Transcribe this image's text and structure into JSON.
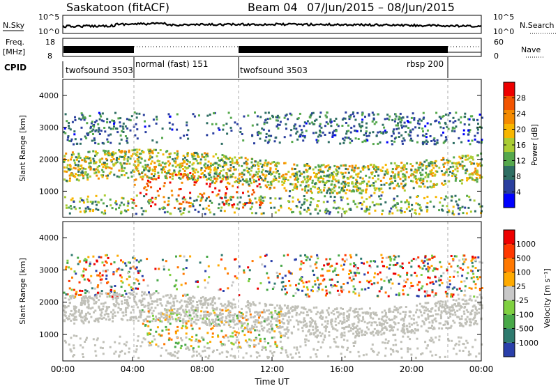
{
  "header": {
    "station": "Saskatoon (fitACF)",
    "beam": "Beam 04",
    "date_range": "07/Jun/2015 – 08/Jun/2015"
  },
  "side_labels": {
    "nsky": "N.Sky",
    "nsearch": "N.Search",
    "freq_line1": "Freq.",
    "freq_line2": "[MHz]",
    "nave": "Nave",
    "cpid": "CPID"
  },
  "noise_axis": {
    "left_ticks": [
      "10^5",
      "10^0"
    ],
    "right_ticks": [
      "10^5",
      "10^0"
    ]
  },
  "freq_axis": {
    "left_ticks": [
      "18",
      "8"
    ],
    "right_ticks": [
      "60",
      "0"
    ]
  },
  "cpid_segments": [
    {
      "label": "twofsound 3503",
      "start_h": 0.0,
      "end_h": 4.0
    },
    {
      "label": "normal (fast) 151",
      "start_h": 4.0,
      "end_h": 10.0
    },
    {
      "label": "twofsound 3503",
      "start_h": 10.0,
      "end_h": 22.0
    },
    {
      "label": "rbsp 200",
      "start_h": 22.0,
      "end_h": 24.0
    }
  ],
  "colors": {
    "power_scale": [
      "#0000ff",
      "#2a3f9e",
      "#2e6e63",
      "#55a84c",
      "#aacc33",
      "#f7b600",
      "#f48a00",
      "#f25400",
      "#ee0000"
    ],
    "velocity_scale": [
      "#2a3faa",
      "#2e7a6e",
      "#48a848",
      "#7fd040",
      "#c8c8c8",
      "#ffaa00",
      "#ff7800",
      "#ff3800",
      "#ee0000"
    ],
    "ground_scatter": "#c0c0b8"
  },
  "chart_data": [
    {
      "type": "heatmap",
      "name": "power",
      "ylabel": "Slant Range [km]",
      "xlabel": "",
      "x_ticks": [
        "00:00",
        "04:00",
        "08:00",
        "12:00",
        "16:00",
        "20:00",
        "00:00"
      ],
      "xlim_hours": [
        0,
        24
      ],
      "ylim_km": [
        180,
        4500
      ],
      "y_ticks": [
        1000,
        2000,
        3000,
        4000
      ],
      "colorbar": {
        "label": "Power [dB]",
        "range": [
          0,
          32
        ],
        "ticks": [
          4,
          8,
          12,
          16,
          20,
          24,
          28
        ]
      },
      "dashed_time_markers_h": [
        4,
        10,
        22
      ],
      "features": [
        {
          "desc": "main scatter band",
          "t_start": 0.0,
          "t_end": 24.0,
          "range_start_km": 1200,
          "range_end_km": 2200,
          "power_db": 18
        },
        {
          "desc": "strong near-range echoes",
          "t_start": 3.5,
          "t_end": 11.5,
          "range_start_km": 500,
          "range_end_km": 1500,
          "power_db": 30
        },
        {
          "desc": "far-range patches",
          "t_start": 0.0,
          "t_end": 24.0,
          "range_start_km": 2500,
          "range_end_km": 3500,
          "power_db": 8
        }
      ]
    },
    {
      "type": "heatmap",
      "name": "velocity",
      "ylabel": "Slant Range [km]",
      "xlabel": "Time UT",
      "x_ticks": [
        "00:00",
        "04:00",
        "08:00",
        "12:00",
        "16:00",
        "20:00",
        "00:00"
      ],
      "xlim_hours": [
        0,
        24
      ],
      "ylim_km": [
        180,
        4500
      ],
      "y_ticks": [
        1000,
        2000,
        3000,
        4000
      ],
      "colorbar": {
        "label": "Velocity [m s⁻¹]",
        "ticks": [
          "1000",
          "500",
          "100",
          "25",
          "-25",
          "-100",
          "-500",
          "-1000"
        ]
      },
      "dashed_time_markers_h": [
        4,
        10,
        22
      ],
      "features": [
        {
          "desc": "ground scatter band",
          "t_start": 0.0,
          "t_end": 24.0,
          "range_start_km": 1200,
          "range_end_km": 2200,
          "velocity": 0
        },
        {
          "desc": "negative velocity ionospheric scatter",
          "t_start": 4.5,
          "t_end": 12.5,
          "range_start_km": 600,
          "range_end_km": 1800,
          "velocity": -150
        },
        {
          "desc": "positive velocity patches",
          "t_start": 6.0,
          "t_end": 10.5,
          "range_start_km": 600,
          "range_end_km": 1300,
          "velocity": 150
        }
      ]
    }
  ]
}
